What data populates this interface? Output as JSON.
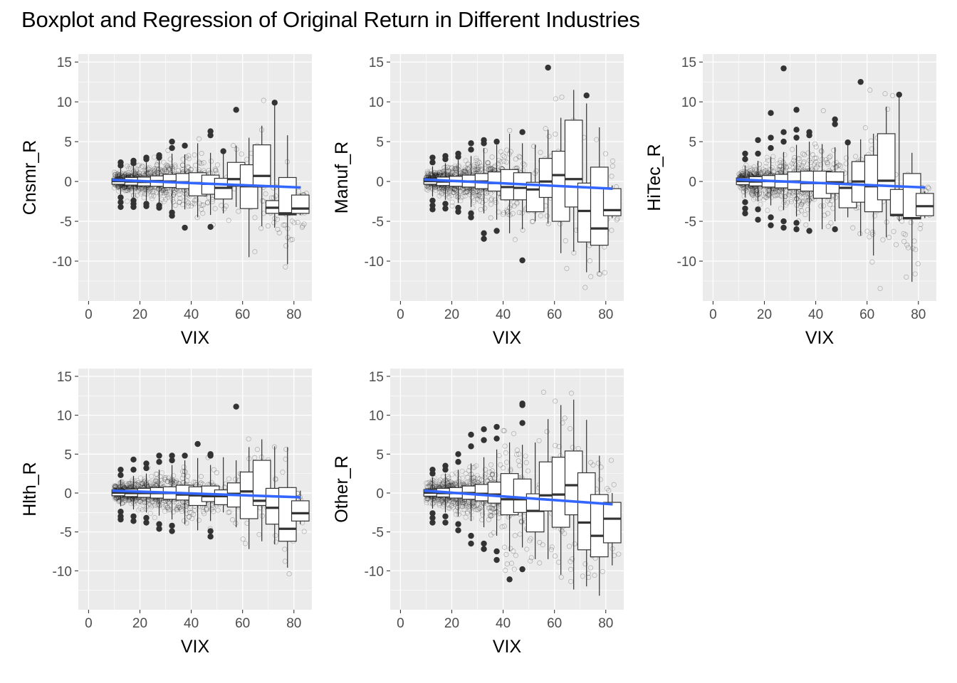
{
  "title": "Boxplot and Regression of Original Return in Different Industries",
  "colors": {
    "panel_bg": "#ebebeb",
    "grid_major": "#ffffff",
    "regression_line": "#3366ff",
    "box_fill": "#ffffff",
    "box_line": "#333333",
    "outlier": "#333333"
  },
  "chart_data": [
    {
      "type": "boxplot+regression",
      "xlabel": "VIX",
      "ylabel": "Cnsmr_R",
      "xlim": [
        -4,
        87
      ],
      "ylim": [
        -15,
        16
      ],
      "xticks": [
        0,
        20,
        40,
        60,
        80
      ],
      "yticks": [
        -10,
        -5,
        0,
        5,
        10,
        15
      ],
      "grid": true,
      "regression": {
        "x": [
          9.3,
          82.7
        ],
        "y": [
          0.2,
          -0.75
        ]
      },
      "boxes": [
        {
          "x": 12.5,
          "q1": -0.35,
          "median": 0.05,
          "q3": 0.35,
          "lo": -1.6,
          "hi": 1.7,
          "outliers": [
            2.4,
            2.0,
            -2.0,
            -2.6,
            -3.2
          ]
        },
        {
          "x": 17.5,
          "q1": -0.45,
          "median": 0.0,
          "q3": 0.5,
          "lo": -2.0,
          "hi": 2.0,
          "outliers": [
            2.6,
            2.3,
            -2.4,
            -2.8,
            -3.2
          ]
        },
        {
          "x": 22.5,
          "q1": -0.55,
          "median": -0.05,
          "q3": 0.55,
          "lo": -2.4,
          "hi": 2.4,
          "outliers": [
            3.0,
            2.8,
            -2.8,
            -3.1
          ]
        },
        {
          "x": 27.5,
          "q1": -0.6,
          "median": 0.05,
          "q3": 0.7,
          "lo": -2.8,
          "hi": 2.8,
          "outliers": [
            3.3,
            3.0,
            -3.0,
            -3.3
          ]
        },
        {
          "x": 32.5,
          "q1": -0.75,
          "median": 0.0,
          "q3": 0.9,
          "lo": -3.5,
          "hi": 3.5,
          "outliers": [
            5.0,
            4.2,
            -3.9,
            -4.3
          ]
        },
        {
          "x": 37.5,
          "q1": -0.9,
          "median": -0.1,
          "q3": 1.0,
          "lo": -3.5,
          "hi": 3.4,
          "outliers": [
            4.5,
            -5.8
          ]
        },
        {
          "x": 42.5,
          "q1": -1.8,
          "median": -0.2,
          "q3": 1.1,
          "lo": -4.5,
          "hi": 4.8,
          "outliers": []
        },
        {
          "x": 47.5,
          "q1": -1.6,
          "median": -0.3,
          "q3": 0.8,
          "lo": -4.2,
          "hi": 3.6,
          "outliers": [
            6.3,
            5.8,
            -5.7
          ]
        },
        {
          "x": 52.5,
          "q1": -2.2,
          "median": -0.8,
          "q3": 0.4,
          "lo": -4.0,
          "hi": 3.6,
          "outliers": [
            3.8
          ]
        },
        {
          "x": 57.5,
          "q1": -0.6,
          "median": 0.3,
          "q3": 2.4,
          "lo": -3.2,
          "hi": 4.5,
          "outliers": [
            9.0
          ]
        },
        {
          "x": 62.5,
          "q1": -3.4,
          "median": -0.6,
          "q3": 2.1,
          "lo": -9.5,
          "hi": 5.5,
          "outliers": []
        },
        {
          "x": 67.5,
          "q1": -0.7,
          "median": 0.7,
          "q3": 4.6,
          "lo": -5.6,
          "hi": 7.0,
          "outliers": []
        },
        {
          "x": 72.5,
          "q1": -4.0,
          "median": -3.3,
          "q3": -2.4,
          "lo": -5.8,
          "hi": 9.8,
          "outliers": [
            9.9
          ]
        },
        {
          "x": 77.5,
          "q1": -4.2,
          "median": -4.0,
          "q3": 0.5,
          "lo": -10.4,
          "hi": 5.8,
          "outliers": []
        },
        {
          "x": 82.5,
          "q1": -4.0,
          "median": -3.4,
          "q3": -1.7,
          "lo": -4.2,
          "hi": -1.5,
          "outliers": []
        }
      ]
    },
    {
      "type": "boxplot+regression",
      "xlabel": "VIX",
      "ylabel": "Manuf_R",
      "xlim": [
        -4,
        87
      ],
      "ylim": [
        -15,
        16
      ],
      "xticks": [
        0,
        20,
        40,
        60,
        80
      ],
      "yticks": [
        -10,
        -5,
        0,
        5,
        10,
        15
      ],
      "grid": true,
      "regression": {
        "x": [
          9.3,
          82.7
        ],
        "y": [
          0.25,
          -0.9
        ]
      },
      "boxes": [
        {
          "x": 12.5,
          "q1": -0.35,
          "median": 0.05,
          "q3": 0.4,
          "lo": -1.9,
          "hi": 1.9,
          "outliers": [
            3.0,
            2.4,
            -2.4,
            -3.0,
            -3.5
          ]
        },
        {
          "x": 17.5,
          "q1": -0.5,
          "median": 0.0,
          "q3": 0.55,
          "lo": -2.3,
          "hi": 2.3,
          "outliers": [
            3.2,
            2.8,
            -2.8,
            -3.4
          ]
        },
        {
          "x": 22.5,
          "q1": -0.6,
          "median": 0.05,
          "q3": 0.65,
          "lo": -2.7,
          "hi": 2.7,
          "outliers": [
            3.5,
            3.1,
            -3.3,
            -3.8
          ]
        },
        {
          "x": 27.5,
          "q1": -0.7,
          "median": 0.0,
          "q3": 0.8,
          "lo": -3.2,
          "hi": 3.2,
          "outliers": [
            4.8,
            4.0,
            -4.0,
            -4.5
          ]
        },
        {
          "x": 32.5,
          "q1": -0.9,
          "median": 0.0,
          "q3": 1.0,
          "lo": -4.0,
          "hi": 4.2,
          "outliers": [
            5.2,
            4.8,
            -6.5,
            -7.2
          ]
        },
        {
          "x": 37.5,
          "q1": -1.2,
          "median": -0.2,
          "q3": 1.2,
          "lo": -4.8,
          "hi": 4.6,
          "outliers": [
            5.0,
            -6.2
          ]
        },
        {
          "x": 42.5,
          "q1": -2.3,
          "median": -0.7,
          "q3": 1.5,
          "lo": -6.5,
          "hi": 6.0,
          "outliers": []
        },
        {
          "x": 47.5,
          "q1": -2.3,
          "median": -0.8,
          "q3": 1.1,
          "lo": -6.0,
          "hi": 4.8,
          "outliers": [
            6.2,
            -9.9
          ]
        },
        {
          "x": 52.5,
          "q1": -3.8,
          "median": -1.0,
          "q3": -0.1,
          "lo": -5.0,
          "hi": 4.6,
          "outliers": []
        },
        {
          "x": 57.5,
          "q1": -2.0,
          "median": 0.0,
          "q3": 2.9,
          "lo": -5.3,
          "hi": 6.5,
          "outliers": [
            14.3
          ]
        },
        {
          "x": 62.5,
          "q1": -5.0,
          "median": 0.8,
          "q3": 3.8,
          "lo": -9.0,
          "hi": 8.0,
          "outliers": []
        },
        {
          "x": 67.5,
          "q1": -3.2,
          "median": 0.3,
          "q3": 7.7,
          "lo": -8.8,
          "hi": 11.5,
          "outliers": []
        },
        {
          "x": 72.5,
          "q1": -7.6,
          "median": -3.7,
          "q3": -0.2,
          "lo": -11.4,
          "hi": 9.8,
          "outliers": [
            10.8
          ]
        },
        {
          "x": 77.5,
          "q1": -8.0,
          "median": -5.9,
          "q3": 1.8,
          "lo": -11.4,
          "hi": 6.8,
          "outliers": []
        },
        {
          "x": 82.5,
          "q1": -4.3,
          "median": -3.6,
          "q3": -0.9,
          "lo": -4.6,
          "hi": -0.5,
          "outliers": []
        }
      ]
    },
    {
      "type": "boxplot+regression",
      "xlabel": "VIX",
      "ylabel": "HiTec_R",
      "xlim": [
        -4,
        87
      ],
      "ylim": [
        -15,
        16
      ],
      "xticks": [
        0,
        20,
        40,
        60,
        80
      ],
      "yticks": [
        -10,
        -5,
        0,
        5,
        10,
        15
      ],
      "grid": true,
      "regression": {
        "x": [
          9.3,
          82.7
        ],
        "y": [
          0.25,
          -0.75
        ]
      },
      "boxes": [
        {
          "x": 12.5,
          "q1": -0.4,
          "median": 0.05,
          "q3": 0.45,
          "lo": -2.0,
          "hi": 2.0,
          "outliers": [
            3.5,
            2.8,
            -2.6,
            -3.4,
            -4.0
          ]
        },
        {
          "x": 17.5,
          "q1": -0.55,
          "median": 0.0,
          "q3": 0.6,
          "lo": -2.5,
          "hi": 2.6,
          "outliers": [
            5.2,
            3.5,
            -3.5,
            -4.8
          ]
        },
        {
          "x": 22.5,
          "q1": -0.7,
          "median": 0.05,
          "q3": 0.75,
          "lo": -3.0,
          "hi": 3.1,
          "outliers": [
            8.6,
            5.5,
            4.2,
            -4.5,
            -5.5
          ]
        },
        {
          "x": 27.5,
          "q1": -0.8,
          "median": 0.0,
          "q3": 0.9,
          "lo": -3.6,
          "hi": 3.7,
          "outliers": [
            14.2,
            6.2,
            5.0,
            -5.0,
            -5.8
          ]
        },
        {
          "x": 32.5,
          "q1": -1.0,
          "median": 0.0,
          "q3": 1.2,
          "lo": -4.4,
          "hi": 4.6,
          "outliers": [
            9.0,
            6.5,
            5.5,
            -5.2,
            -6.0
          ]
        },
        {
          "x": 37.5,
          "q1": -1.2,
          "median": -0.2,
          "q3": 1.3,
          "lo": -5.0,
          "hi": 5.0,
          "outliers": [
            6.2,
            5.8,
            -6.2
          ]
        },
        {
          "x": 42.5,
          "q1": -2.1,
          "median": -0.2,
          "q3": 1.3,
          "lo": -6.0,
          "hi": 4.7,
          "outliers": []
        },
        {
          "x": 47.5,
          "q1": -1.5,
          "median": -0.1,
          "q3": 1.2,
          "lo": -5.0,
          "hi": 4.3,
          "outliers": [
            7.8,
            7.2,
            -6.0
          ]
        },
        {
          "x": 52.5,
          "q1": -3.3,
          "median": -0.8,
          "q3": -0.2,
          "lo": -4.5,
          "hi": 4.8,
          "outliers": [
            4.9
          ]
        },
        {
          "x": 57.5,
          "q1": -2.6,
          "median": 0.0,
          "q3": 2.5,
          "lo": -6.8,
          "hi": 5.3,
          "outliers": [
            12.5
          ]
        },
        {
          "x": 62.5,
          "q1": -3.8,
          "median": -0.6,
          "q3": 3.3,
          "lo": -9.3,
          "hi": 6.0,
          "outliers": []
        },
        {
          "x": 67.5,
          "q1": -2.3,
          "median": 0.1,
          "q3": 6.0,
          "lo": -7.0,
          "hi": 9.4,
          "outliers": []
        },
        {
          "x": 72.5,
          "q1": -4.3,
          "median": -4.2,
          "q3": -1.0,
          "lo": -5.0,
          "hi": 10.8,
          "outliers": [
            10.9
          ]
        },
        {
          "x": 77.5,
          "q1": -4.7,
          "median": -4.6,
          "q3": 1.0,
          "lo": -12.6,
          "hi": 3.6,
          "outliers": []
        },
        {
          "x": 82.5,
          "q1": -4.3,
          "median": -3.1,
          "q3": -1.5,
          "lo": -4.6,
          "hi": -1.2,
          "outliers": []
        }
      ]
    },
    {
      "type": "boxplot+regression",
      "xlabel": "VIX",
      "ylabel": "Hlth_R",
      "xlim": [
        -4,
        87
      ],
      "ylim": [
        -15,
        16
      ],
      "xticks": [
        0,
        20,
        40,
        60,
        80
      ],
      "yticks": [
        -10,
        -5,
        0,
        5,
        10,
        15
      ],
      "grid": true,
      "regression": {
        "x": [
          9.3,
          82.7
        ],
        "y": [
          0.3,
          -0.55
        ]
      },
      "boxes": [
        {
          "x": 12.5,
          "q1": -0.35,
          "median": 0.05,
          "q3": 0.4,
          "lo": -1.7,
          "hi": 1.7,
          "outliers": [
            3.0,
            2.3,
            -2.4,
            -3.0,
            -3.4
          ]
        },
        {
          "x": 17.5,
          "q1": -0.45,
          "median": 0.0,
          "q3": 0.5,
          "lo": -2.1,
          "hi": 2.2,
          "outliers": [
            4.3,
            3.0,
            -3.0,
            -3.6
          ]
        },
        {
          "x": 22.5,
          "q1": -0.55,
          "median": 0.0,
          "q3": 0.6,
          "lo": -2.5,
          "hi": 2.5,
          "outliers": [
            3.8,
            3.2,
            -3.2,
            -3.8
          ]
        },
        {
          "x": 27.5,
          "q1": -0.65,
          "median": 0.0,
          "q3": 0.7,
          "lo": -2.9,
          "hi": 3.0,
          "outliers": [
            4.8,
            4.0,
            -4.0,
            -4.6
          ]
        },
        {
          "x": 32.5,
          "q1": -0.8,
          "median": 0.0,
          "q3": 0.8,
          "lo": -3.4,
          "hi": 3.6,
          "outliers": [
            4.8,
            4.2,
            -4.2,
            -4.9
          ]
        },
        {
          "x": 37.5,
          "q1": -0.9,
          "median": -0.2,
          "q3": 1.0,
          "lo": -4.0,
          "hi": 4.2,
          "outliers": [
            4.8
          ]
        },
        {
          "x": 42.5,
          "q1": -1.6,
          "median": -0.3,
          "q3": 0.8,
          "lo": -4.8,
          "hi": 4.5,
          "outliers": [
            6.3
          ]
        },
        {
          "x": 47.5,
          "q1": -1.1,
          "median": -0.4,
          "q3": 0.9,
          "lo": -3.6,
          "hi": 3.6,
          "outliers": [
            5.0,
            4.8,
            -4.9,
            -5.6
          ]
        },
        {
          "x": 52.5,
          "q1": -1.5,
          "median": -0.4,
          "q3": 0.4,
          "lo": -2.5,
          "hi": 4.6,
          "outliers": []
        },
        {
          "x": 57.5,
          "q1": -1.8,
          "median": -0.1,
          "q3": 1.3,
          "lo": -4.4,
          "hi": 4.2,
          "outliers": [
            11.1
          ]
        },
        {
          "x": 62.5,
          "q1": -3.3,
          "median": 0.2,
          "q3": 2.7,
          "lo": -7.2,
          "hi": 5.9,
          "outliers": []
        },
        {
          "x": 67.5,
          "q1": -1.6,
          "median": -1.0,
          "q3": 4.2,
          "lo": -6.2,
          "hi": 6.9,
          "outliers": []
        },
        {
          "x": 72.5,
          "q1": -4.0,
          "median": -1.9,
          "q3": 0.6,
          "lo": -6.6,
          "hi": 6.0,
          "outliers": []
        },
        {
          "x": 77.5,
          "q1": -6.2,
          "median": -4.6,
          "q3": 0.7,
          "lo": -9.6,
          "hi": 5.9,
          "outliers": []
        },
        {
          "x": 82.5,
          "q1": -3.6,
          "median": -2.6,
          "q3": -1.0,
          "lo": -4.0,
          "hi": 0.3,
          "outliers": []
        }
      ]
    },
    {
      "type": "boxplot+regression",
      "xlabel": "VIX",
      "ylabel": "Other_R",
      "xlim": [
        -4,
        87
      ],
      "ylim": [
        -15,
        16
      ],
      "xticks": [
        0,
        20,
        40,
        60,
        80
      ],
      "yticks": [
        -10,
        -5,
        0,
        5,
        10,
        15
      ],
      "grid": true,
      "regression": {
        "x": [
          9.3,
          82.7
        ],
        "y": [
          0.3,
          -1.45
        ]
      },
      "boxes": [
        {
          "x": 12.5,
          "q1": -0.4,
          "median": 0.05,
          "q3": 0.45,
          "lo": -2.0,
          "hi": 2.0,
          "outliers": [
            3.0,
            2.5,
            -2.6,
            -3.2,
            -3.8
          ]
        },
        {
          "x": 17.5,
          "q1": -0.5,
          "median": 0.0,
          "q3": 0.6,
          "lo": -2.5,
          "hi": 2.5,
          "outliers": [
            3.5,
            3.0,
            -3.0,
            -3.8
          ]
        },
        {
          "x": 22.5,
          "q1": -0.65,
          "median": 0.0,
          "q3": 0.7,
          "lo": -3.0,
          "hi": 3.0,
          "outliers": [
            5.0,
            4.0,
            -4.0,
            -4.8
          ]
        },
        {
          "x": 27.5,
          "q1": -0.8,
          "median": 0.0,
          "q3": 0.9,
          "lo": -3.6,
          "hi": 3.8,
          "outliers": [
            7.5,
            6.0,
            -5.5,
            -6.5
          ]
        },
        {
          "x": 32.5,
          "q1": -1.0,
          "median": -0.1,
          "q3": 1.1,
          "lo": -4.4,
          "hi": 4.6,
          "outliers": [
            8.2,
            6.8,
            -6.5,
            -7.2
          ]
        },
        {
          "x": 37.5,
          "q1": -1.3,
          "median": -0.2,
          "q3": 1.4,
          "lo": -5.5,
          "hi": 5.6,
          "outliers": [
            8.5,
            7.0,
            -7.5,
            -8.6
          ]
        },
        {
          "x": 42.5,
          "q1": -2.8,
          "median": -0.8,
          "q3": 2.5,
          "lo": -7.5,
          "hi": 6.5,
          "outliers": [
            -11.1
          ]
        },
        {
          "x": 47.5,
          "q1": -2.5,
          "median": -0.8,
          "q3": 1.8,
          "lo": -7.0,
          "hi": 6.2,
          "outliers": [
            11.5,
            11.3,
            9.0,
            -9.8
          ]
        },
        {
          "x": 52.5,
          "q1": -5.0,
          "median": -2.3,
          "q3": -0.1,
          "lo": -8.5,
          "hi": 6.5,
          "outliers": []
        },
        {
          "x": 57.5,
          "q1": -2.3,
          "median": -0.3,
          "q3": 4.0,
          "lo": -8.5,
          "hi": 9.5,
          "outliers": []
        },
        {
          "x": 62.5,
          "q1": -4.4,
          "median": -0.2,
          "q3": 4.6,
          "lo": -10.5,
          "hi": 11.3,
          "outliers": []
        },
        {
          "x": 67.5,
          "q1": -2.8,
          "median": 1.0,
          "q3": 5.4,
          "lo": -12.4,
          "hi": 12.0,
          "outliers": []
        },
        {
          "x": 72.5,
          "q1": -7.3,
          "median": -3.8,
          "q3": 2.6,
          "lo": -12.0,
          "hi": 9.4,
          "outliers": []
        },
        {
          "x": 77.5,
          "q1": -8.2,
          "median": -5.5,
          "q3": -0.2,
          "lo": -13.2,
          "hi": 4.8,
          "outliers": []
        },
        {
          "x": 82.5,
          "q1": -6.4,
          "median": -3.3,
          "q3": -1.2,
          "lo": -9.3,
          "hi": 0.0,
          "outliers": []
        }
      ]
    }
  ]
}
